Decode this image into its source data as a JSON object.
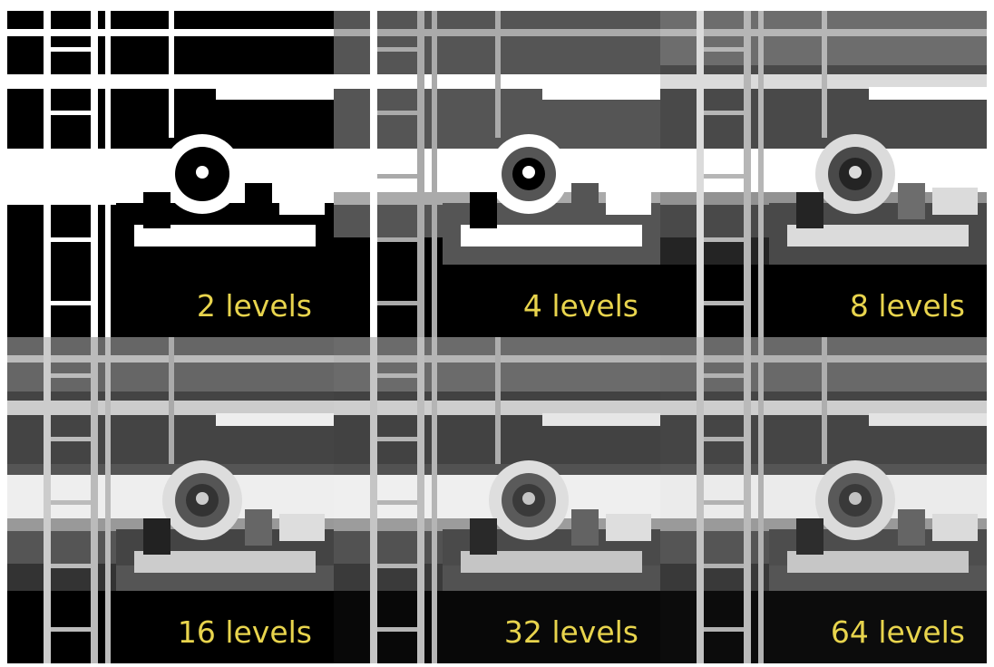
{
  "figure": {
    "panels": [
      {
        "label": "2 levels",
        "levels": 2
      },
      {
        "label": "4 levels",
        "levels": 4
      },
      {
        "label": "8 levels",
        "levels": 8
      },
      {
        "label": "16 levels",
        "levels": 16
      },
      {
        "label": "32 levels",
        "levels": 32
      },
      {
        "label": "64 levels",
        "levels": 64
      }
    ],
    "colors": {
      "label": "#e8d44d",
      "background": "#000000",
      "page": "#ffffff"
    }
  }
}
